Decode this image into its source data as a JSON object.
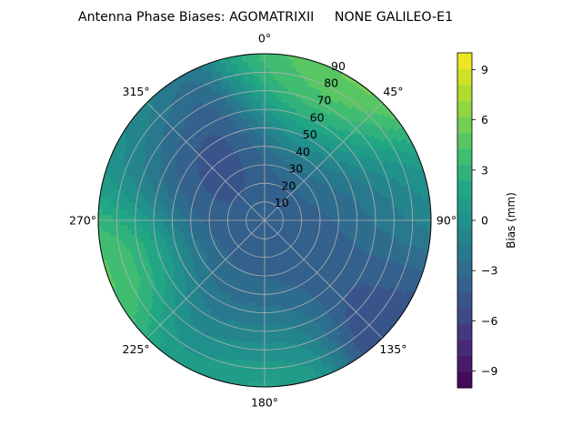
{
  "chart_data": {
    "type": "heatmap",
    "projection": "polar",
    "title": "Antenna Phase Biases: AGOMATRIXII     NONE GALILEO-E1",
    "angular_ticks": [
      "0°",
      "45°",
      "90°",
      "135°",
      "180°",
      "225°",
      "270°",
      "315°"
    ],
    "angular_tick_degrees": [
      0,
      45,
      90,
      135,
      180,
      225,
      270,
      315
    ],
    "angular_direction": "clockwise",
    "zero_location": "top",
    "radial_ticks": [
      "10",
      "20",
      "30",
      "40",
      "50",
      "60",
      "70",
      "80",
      "90"
    ],
    "radial_tick_values": [
      10,
      20,
      30,
      40,
      50,
      60,
      70,
      80,
      90
    ],
    "radial_range": [
      0,
      90
    ],
    "grid": true,
    "colorbar": {
      "label": "Bias (mm)",
      "range": [
        -10,
        10
      ],
      "levels": 21,
      "tick_values": [
        -9,
        -6,
        -3,
        0,
        3,
        6,
        9
      ],
      "tick_labels": [
        "−9",
        "−6",
        "−3",
        "0",
        "3",
        "6",
        "9"
      ],
      "colormap": "viridis"
    },
    "field_description": "Near zenith (r < 20) biases about -3 mm; ring of about -5 to -7 mm between r 30-60, deepest toward azimuth 300-330; values rise toward horizon, peaking about +7 to +8 mm near azimuth 30-45 at r 70-85; secondary positive lobe about +4 to +5 mm near azimuth 240-260 at r 75-85; negative pocket about -6 mm near azimuth 110-120 at the horizon.",
    "features": [
      {
        "azimuth": 0,
        "r": 5,
        "value": -3
      },
      {
        "azimuth": 315,
        "r": 45,
        "value": -7
      },
      {
        "azimuth": 200,
        "r": 45,
        "value": -5
      },
      {
        "azimuth": 60,
        "r": 45,
        "value": -5
      },
      {
        "azimuth": 38,
        "r": 80,
        "value": 8
      },
      {
        "azimuth": 15,
        "r": 85,
        "value": 4
      },
      {
        "azimuth": 250,
        "r": 80,
        "value": 5
      },
      {
        "azimuth": 190,
        "r": 80,
        "value": 3
      },
      {
        "azimuth": 115,
        "r": 88,
        "value": -6
      },
      {
        "azimuth": 90,
        "r": 88,
        "value": 1
      },
      {
        "azimuth": 300,
        "r": 85,
        "value": 1
      }
    ]
  }
}
